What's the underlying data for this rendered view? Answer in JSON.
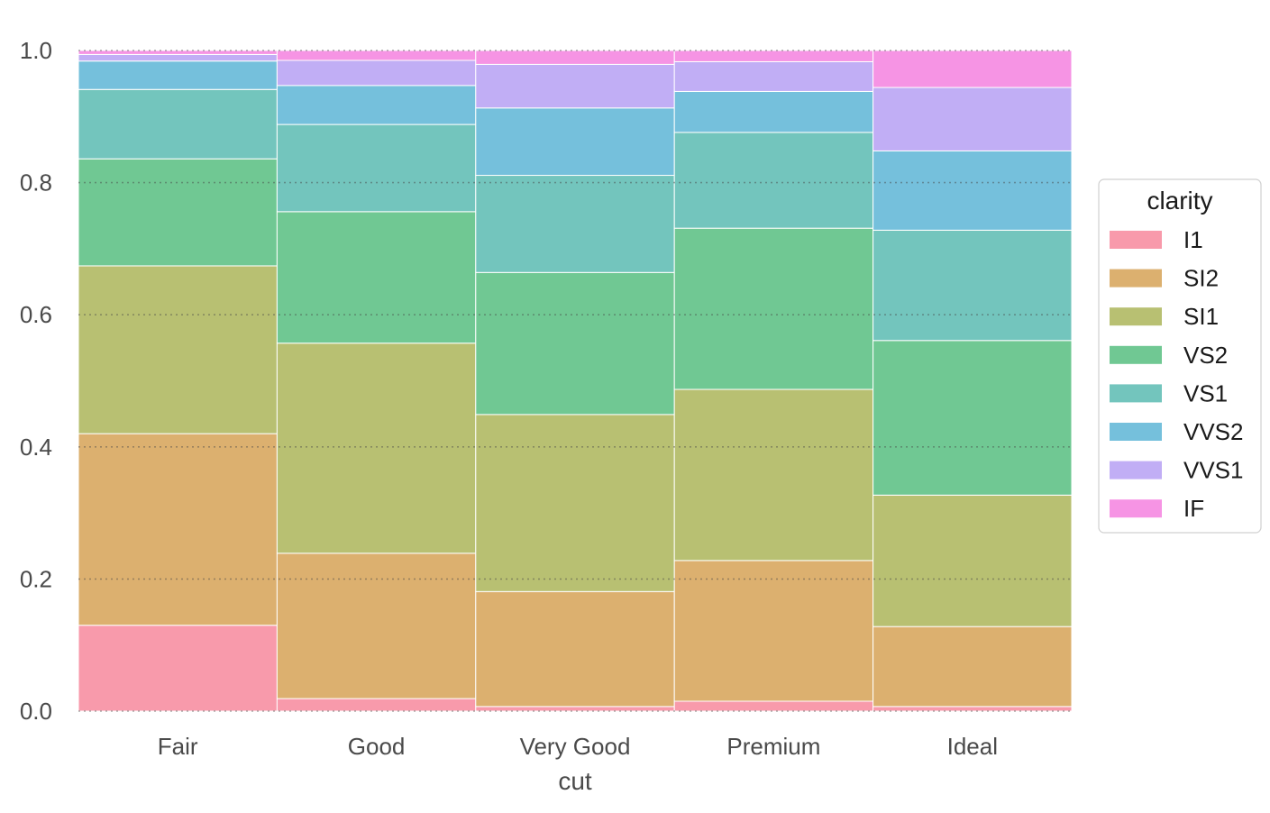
{
  "chart_data": {
    "type": "bar",
    "stacked": true,
    "normalized": true,
    "categories": [
      "Fair",
      "Good",
      "Very Good",
      "Premium",
      "Ideal"
    ],
    "xlabel": "cut",
    "ylabel": "",
    "ylim": [
      0,
      1.0
    ],
    "yticks": [
      "0.0",
      "0.2",
      "0.4",
      "0.6",
      "0.8",
      "1.0"
    ],
    "grid": "horizontal dotted",
    "legend": {
      "title": "clarity",
      "position": "right"
    },
    "series": [
      {
        "name": "I1",
        "color": "#f89aab",
        "values": [
          0.13,
          0.019,
          0.007,
          0.015,
          0.007
        ]
      },
      {
        "name": "SI2",
        "color": "#dcb06f",
        "values": [
          0.29,
          0.22,
          0.174,
          0.213,
          0.121
        ]
      },
      {
        "name": "SI1",
        "color": "#b8c072",
        "values": [
          0.254,
          0.318,
          0.268,
          0.259,
          0.199
        ]
      },
      {
        "name": "VS2",
        "color": "#70c893",
        "values": [
          0.162,
          0.199,
          0.215,
          0.244,
          0.234
        ]
      },
      {
        "name": "VS1",
        "color": "#73c5bd",
        "values": [
          0.105,
          0.132,
          0.147,
          0.145,
          0.167
        ]
      },
      {
        "name": "VVS2",
        "color": "#75c0dc",
        "values": [
          0.043,
          0.059,
          0.102,
          0.062,
          0.12
        ]
      },
      {
        "name": "VVS1",
        "color": "#c1aef5",
        "values": [
          0.01,
          0.038,
          0.066,
          0.045,
          0.096
        ]
      },
      {
        "name": "IF",
        "color": "#f694e4",
        "values": [
          0.006,
          0.015,
          0.021,
          0.017,
          0.056
        ]
      }
    ]
  }
}
